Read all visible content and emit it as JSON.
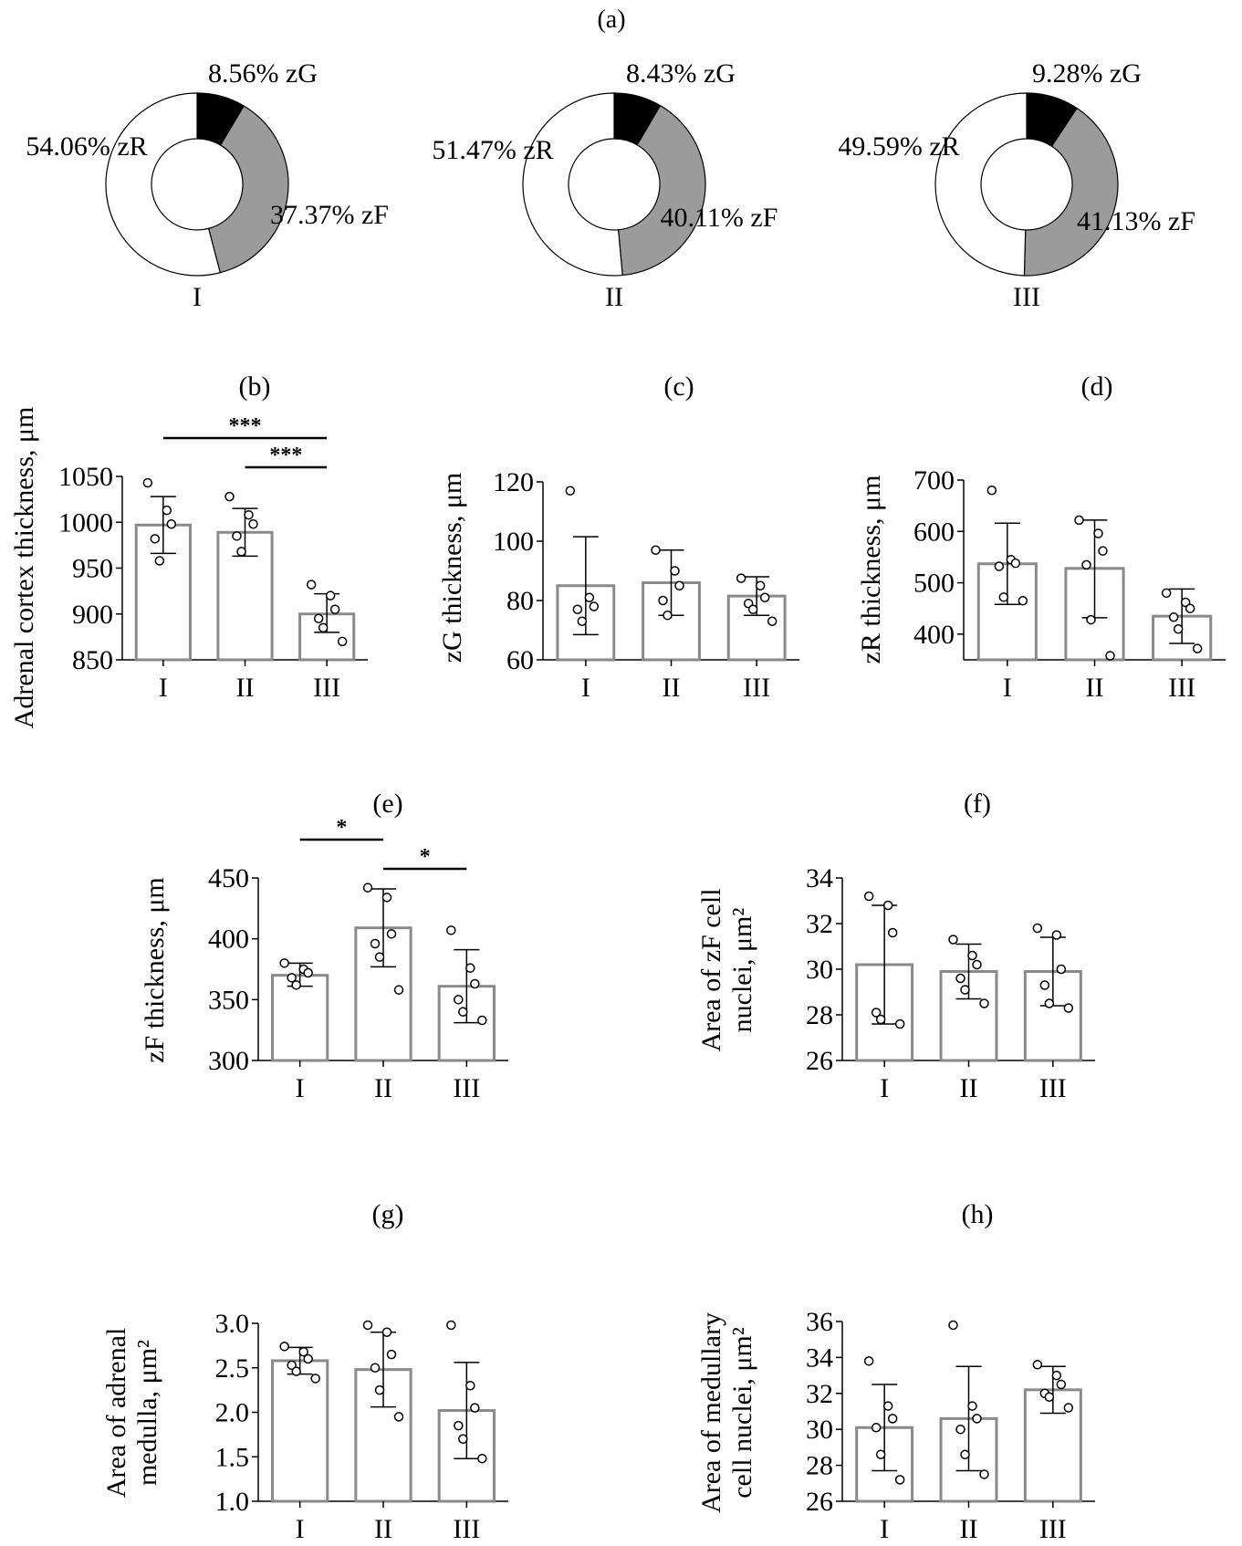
{
  "figure": {
    "panel_a_label": "(a)"
  },
  "chart_data": [
    {
      "id": "a1",
      "panel": "(a)",
      "type": "pie",
      "group": "I",
      "slices": [
        {
          "label": "8.56% zG",
          "value": 8.56,
          "color": "#000000"
        },
        {
          "label": "37.37% zF",
          "value": 37.37,
          "color": "#9b9b9b"
        },
        {
          "label": "54.06% zR",
          "value": 54.06,
          "color": "#ffffff"
        }
      ]
    },
    {
      "id": "a2",
      "panel": "(a)",
      "type": "pie",
      "group": "II",
      "slices": [
        {
          "label": "8.43% zG",
          "value": 8.43,
          "color": "#000000"
        },
        {
          "label": "40.11% zF",
          "value": 40.11,
          "color": "#9b9b9b"
        },
        {
          "label": "51.47% zR",
          "value": 51.47,
          "color": "#ffffff"
        }
      ]
    },
    {
      "id": "a3",
      "panel": "(a)",
      "type": "pie",
      "group": "III",
      "slices": [
        {
          "label": "9.28% zG",
          "value": 9.28,
          "color": "#000000"
        },
        {
          "label": "41.13% zF",
          "value": 41.13,
          "color": "#9b9b9b"
        },
        {
          "label": "49.59% zR",
          "value": 49.59,
          "color": "#ffffff"
        }
      ]
    },
    {
      "id": "b",
      "panel": "(b)",
      "type": "bar",
      "ylabel": [
        "Adrenal cortex thickness, μm"
      ],
      "categories": [
        "I",
        "II",
        "III"
      ],
      "values": [
        997,
        989,
        900
      ],
      "err_low": [
        966,
        963,
        880
      ],
      "err_high": [
        1028,
        1015,
        922
      ],
      "points": [
        [
          1043,
          1013,
          998,
          982,
          958
        ],
        [
          1028,
          1008,
          998,
          985,
          968
        ],
        [
          932,
          920,
          905,
          895,
          885,
          870
        ]
      ],
      "ylim": [
        850,
        1050
      ],
      "yticks": [
        850,
        900,
        950,
        1000,
        1050
      ],
      "significance": [
        {
          "from": 0,
          "to": 2,
          "label": "***"
        },
        {
          "from": 1,
          "to": 2,
          "label": "***"
        }
      ]
    },
    {
      "id": "c",
      "panel": "(c)",
      "type": "bar",
      "ylabel": [
        "zG thickness, μm"
      ],
      "categories": [
        "I",
        "II",
        "III"
      ],
      "values": [
        85,
        86,
        81.5
      ],
      "err_low": [
        68.5,
        75,
        75
      ],
      "err_high": [
        101.5,
        97,
        88
      ],
      "points": [
        [
          117,
          81,
          78,
          77,
          73
        ],
        [
          97,
          90,
          85,
          80,
          75
        ],
        [
          87.5,
          85,
          81,
          79,
          77,
          73
        ]
      ],
      "ylim": [
        60,
        120
      ],
      "yticks": [
        60,
        80,
        100,
        120
      ],
      "significance": []
    },
    {
      "id": "d",
      "panel": "(d)",
      "type": "bar",
      "ylabel": [
        "zR thickness, μm"
      ],
      "categories": [
        "I",
        "II",
        "III"
      ],
      "values": [
        537,
        528,
        435
      ],
      "err_low": [
        458,
        432,
        382
      ],
      "err_high": [
        616,
        622,
        488
      ],
      "points": [
        [
          680,
          545,
          538,
          532,
          472,
          465
        ],
        [
          622,
          596,
          562,
          535,
          428,
          358
        ],
        [
          480,
          462,
          450,
          433,
          410,
          372
        ]
      ],
      "ylim": [
        350,
        700
      ],
      "yticks": [
        400,
        500,
        600,
        700
      ],
      "significance": []
    },
    {
      "id": "e",
      "panel": "(e)",
      "type": "bar",
      "ylabel": [
        "zF thickness, μm"
      ],
      "categories": [
        "I",
        "II",
        "III"
      ],
      "values": [
        370,
        409,
        361
      ],
      "err_low": [
        361,
        377,
        331
      ],
      "err_high": [
        380,
        441,
        391
      ],
      "points": [
        [
          380,
          375,
          372,
          368,
          362
        ],
        [
          442,
          434,
          404,
          396,
          385,
          358
        ],
        [
          407,
          376,
          363,
          350,
          340,
          333
        ]
      ],
      "ylim": [
        300,
        450
      ],
      "yticks": [
        300,
        350,
        400,
        450
      ],
      "significance": [
        {
          "from": 0,
          "to": 1,
          "label": "*"
        },
        {
          "from": 1,
          "to": 2,
          "label": "*"
        }
      ]
    },
    {
      "id": "f",
      "panel": "(f)",
      "type": "bar",
      "ylabel": [
        "Area of zF cell",
        "nuclei, μm²"
      ],
      "categories": [
        "I",
        "II",
        "III"
      ],
      "values": [
        30.2,
        29.9,
        29.9
      ],
      "err_low": [
        27.6,
        28.7,
        28.4
      ],
      "err_high": [
        32.8,
        31.1,
        31.4
      ],
      "points": [
        [
          33.2,
          32.8,
          31.6,
          28.1,
          27.8,
          27.6
        ],
        [
          31.3,
          30.6,
          30.2,
          29.6,
          29.1,
          28.5
        ],
        [
          31.8,
          31.5,
          30.0,
          29.3,
          28.5,
          28.3
        ]
      ],
      "ylim": [
        26,
        34
      ],
      "yticks": [
        26,
        28,
        30,
        32,
        34
      ],
      "significance": []
    },
    {
      "id": "g",
      "panel": "(g)",
      "type": "bar",
      "ylabel": [
        "Area of adrenal",
        "medulla, μm²"
      ],
      "categories": [
        "I",
        "II",
        "III"
      ],
      "values": [
        2.58,
        2.48,
        2.02
      ],
      "err_low": [
        2.43,
        2.06,
        1.48
      ],
      "err_high": [
        2.73,
        2.9,
        2.56
      ],
      "points": [
        [
          2.74,
          2.68,
          2.6,
          2.53,
          2.46,
          2.38
        ],
        [
          2.98,
          2.9,
          2.65,
          2.5,
          2.25,
          1.95
        ],
        [
          2.98,
          2.3,
          2.05,
          1.85,
          1.7,
          1.48
        ]
      ],
      "ylim": [
        1.0,
        3.0
      ],
      "yticks": [
        1.0,
        1.5,
        2.0,
        2.5,
        3.0
      ],
      "significance": []
    },
    {
      "id": "h",
      "panel": "(h)",
      "type": "bar",
      "ylabel": [
        "Area of medullary",
        "cell nuclei, μm²"
      ],
      "categories": [
        "I",
        "II",
        "III"
      ],
      "values": [
        30.1,
        30.6,
        32.2
      ],
      "err_low": [
        27.7,
        27.7,
        30.9
      ],
      "err_high": [
        32.5,
        33.5,
        33.5
      ],
      "points": [
        [
          33.8,
          31.3,
          30.6,
          30.1,
          28.6,
          27.2
        ],
        [
          35.8,
          31.3,
          30.6,
          30.0,
          28.6,
          27.5
        ],
        [
          33.6,
          33.0,
          32.5,
          32.0,
          31.8,
          31.2
        ]
      ],
      "ylim": [
        26,
        36
      ],
      "yticks": [
        26,
        28,
        30,
        32,
        34,
        36
      ],
      "significance": []
    }
  ]
}
